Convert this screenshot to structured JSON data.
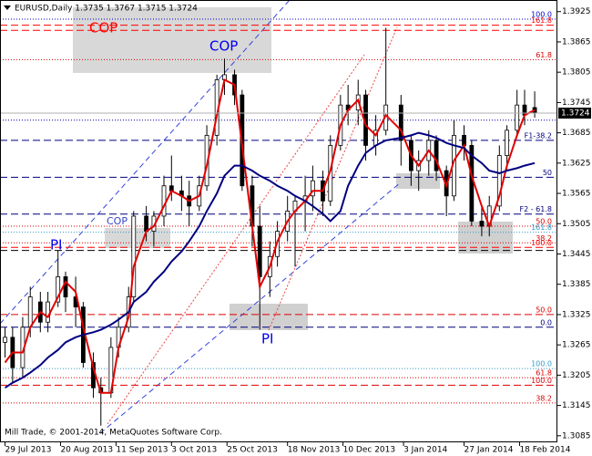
{
  "chart_data": {
    "type": "candlestick",
    "title": "EURUSD,Daily  1.3735 1.3767 1.3715 1.3724",
    "footer": "Mill Trade, © 2001-2014, MetaQuotes Software Corp.",
    "x": [
      "2013-07-29",
      "2013-08-01",
      "2013-08-05",
      "2013-08-08",
      "2013-08-12",
      "2013-08-15",
      "2013-08-19",
      "2013-08-22",
      "2013-08-26",
      "2013-08-29",
      "2013-09-02",
      "2013-09-05",
      "2013-09-09",
      "2013-09-12",
      "2013-09-16",
      "2013-09-18",
      "2013-09-23",
      "2013-09-26",
      "2013-09-30",
      "2013-10-03",
      "2013-10-07",
      "2013-10-10",
      "2013-10-14",
      "2013-10-17",
      "2013-10-21",
      "2013-10-24",
      "2013-10-28",
      "2013-10-31",
      "2013-11-04",
      "2013-11-07",
      "2013-11-11",
      "2013-11-14",
      "2013-11-18",
      "2013-11-21",
      "2013-11-25",
      "2013-11-28",
      "2013-12-02",
      "2013-12-05",
      "2013-12-09",
      "2013-12-12",
      "2013-12-16",
      "2013-12-19",
      "2013-12-23",
      "2013-12-27",
      "2014-01-02",
      "2014-01-06",
      "2014-01-09",
      "2014-01-13",
      "2014-01-16",
      "2014-01-20",
      "2014-01-23",
      "2014-01-27",
      "2014-01-30",
      "2014-02-03",
      "2014-02-06",
      "2014-02-10",
      "2014-02-13",
      "2014-02-17",
      "2014-02-20",
      "2014-02-24"
    ],
    "open": [
      1.327,
      1.328,
      1.322,
      1.33,
      1.335,
      1.331,
      1.335,
      1.34,
      1.336,
      1.334,
      1.323,
      1.318,
      1.317,
      1.326,
      1.33,
      1.336,
      1.352,
      1.349,
      1.352,
      1.358,
      1.357,
      1.356,
      1.354,
      1.358,
      1.368,
      1.379,
      1.38,
      1.376,
      1.358,
      1.35,
      1.34,
      1.344,
      1.349,
      1.353,
      1.355,
      1.356,
      1.359,
      1.355,
      1.366,
      1.374,
      1.373,
      1.376,
      1.366,
      1.369,
      1.374,
      1.367,
      1.361,
      1.363,
      1.367,
      1.361,
      1.356,
      1.368,
      1.366,
      1.351,
      1.35,
      1.354,
      1.364,
      1.369,
      1.374,
      1.3735
    ],
    "high": [
      1.33,
      1.33,
      1.332,
      1.338,
      1.337,
      1.337,
      1.3452,
      1.341,
      1.34,
      1.335,
      1.325,
      1.32,
      1.328,
      1.332,
      1.338,
      1.353,
      1.354,
      1.353,
      1.36,
      1.364,
      1.36,
      1.359,
      1.36,
      1.37,
      1.38,
      1.3832,
      1.381,
      1.377,
      1.36,
      1.354,
      1.347,
      1.351,
      1.356,
      1.356,
      1.36,
      1.362,
      1.361,
      1.368,
      1.376,
      1.378,
      1.379,
      1.377,
      1.372,
      1.3893,
      1.376,
      1.368,
      1.365,
      1.369,
      1.368,
      1.362,
      1.371,
      1.37,
      1.367,
      1.354,
      1.356,
      1.366,
      1.37,
      1.377,
      1.377,
      1.3767
    ],
    "low": [
      1.324,
      1.319,
      1.32,
      1.328,
      1.329,
      1.329,
      1.334,
      1.333,
      1.33,
      1.322,
      1.316,
      1.3105,
      1.316,
      1.324,
      1.329,
      1.335,
      1.347,
      1.346,
      1.35,
      1.355,
      1.353,
      1.35,
      1.353,
      1.357,
      1.366,
      1.376,
      1.374,
      1.357,
      1.346,
      1.3295,
      1.336,
      1.342,
      1.347,
      1.342,
      1.349,
      1.353,
      1.352,
      1.354,
      1.365,
      1.37,
      1.37,
      1.363,
      1.364,
      1.368,
      1.362,
      1.358,
      1.357,
      1.36,
      1.359,
      1.352,
      1.355,
      1.363,
      1.35,
      1.348,
      1.348,
      1.353,
      1.361,
      1.368,
      1.37,
      1.3715
    ],
    "close": [
      1.328,
      1.322,
      1.33,
      1.336,
      1.331,
      1.335,
      1.34,
      1.336,
      1.334,
      1.323,
      1.318,
      1.317,
      1.326,
      1.33,
      1.336,
      1.352,
      1.349,
      1.352,
      1.358,
      1.357,
      1.356,
      1.354,
      1.358,
      1.368,
      1.379,
      1.38,
      1.376,
      1.358,
      1.35,
      1.34,
      1.344,
      1.349,
      1.353,
      1.355,
      1.356,
      1.359,
      1.355,
      1.366,
      1.374,
      1.373,
      1.376,
      1.366,
      1.369,
      1.374,
      1.367,
      1.361,
      1.363,
      1.367,
      1.361,
      1.356,
      1.368,
      1.366,
      1.351,
      1.35,
      1.354,
      1.364,
      1.369,
      1.374,
      1.372,
      1.3724
    ],
    "lines": [
      {
        "color": "#e00000",
        "values": [
          1.323,
          1.325,
          1.325,
          1.33,
          1.333,
          1.332,
          1.336,
          1.339,
          1.337,
          1.33,
          1.322,
          1.317,
          1.317,
          1.326,
          1.332,
          1.342,
          1.349,
          1.35,
          1.354,
          1.357,
          1.356,
          1.355,
          1.356,
          1.362,
          1.372,
          1.379,
          1.378,
          1.366,
          1.35,
          1.338,
          1.342,
          1.347,
          1.351,
          1.353,
          1.355,
          1.357,
          1.357,
          1.361,
          1.37,
          1.373,
          1.375,
          1.37,
          1.368,
          1.372,
          1.369,
          1.364,
          1.362,
          1.365,
          1.363,
          1.358,
          1.363,
          1.366,
          1.36,
          1.354,
          1.35,
          1.356,
          1.362,
          1.368,
          1.372,
          1.373
        ]
      },
      {
        "color": "#000080",
        "values": [
          1.318,
          1.319,
          1.32,
          1.321,
          1.3225,
          1.324,
          1.3255,
          1.327,
          1.328,
          1.3285,
          1.329,
          1.3295,
          1.3305,
          1.3315,
          1.333,
          1.335,
          1.337,
          1.339,
          1.341,
          1.343,
          1.345,
          1.347,
          1.35,
          1.353,
          1.3565,
          1.36,
          1.362,
          1.362,
          1.361,
          1.36,
          1.359,
          1.358,
          1.357,
          1.356,
          1.355,
          1.354,
          1.3525,
          1.351,
          1.353,
          1.358,
          1.362,
          1.3645,
          1.366,
          1.367,
          1.3675,
          1.368,
          1.3685,
          1.368,
          1.3675,
          1.3665,
          1.366,
          1.3655,
          1.364,
          1.3625,
          1.361,
          1.3605,
          1.361,
          1.3615,
          1.362,
          1.3625
        ]
      }
    ],
    "levels": [
      {
        "value": 1.391,
        "color": "#0000cc",
        "style": "dot",
        "label": "100.0"
      },
      {
        "value": 1.3898,
        "color": "#ff0000",
        "style": "dash",
        "label": "161.8"
      },
      {
        "value": 1.3888,
        "color": "#ff0000",
        "style": "dash"
      },
      {
        "value": 1.383,
        "color": "#dd0000",
        "style": "dot",
        "label": "61.8"
      },
      {
        "value": 1.371,
        "color": "#0000aa",
        "style": "dot"
      },
      {
        "value": 1.367,
        "color": "#000080",
        "style": "dash",
        "label": "F1-38.2"
      },
      {
        "value": 1.3597,
        "color": "#000080",
        "style": "dash",
        "label": "50"
      },
      {
        "value": 1.3524,
        "color": "#000080",
        "style": "dash",
        "label": "F2 - 61.8"
      },
      {
        "value": 1.35,
        "color": "#dd0000",
        "style": "dot",
        "label": "50.0"
      },
      {
        "value": 1.3488,
        "color": "#3399cc",
        "style": "dot",
        "label": "161.8"
      },
      {
        "value": 1.3467,
        "color": "#dd0000",
        "style": "dot",
        "label": "38.2"
      },
      {
        "value": 1.3458,
        "color": "#ff0000",
        "style": "dash",
        "label": "100.0"
      },
      {
        "value": 1.3452,
        "color": "#000000",
        "style": "dash"
      },
      {
        "value": 1.3325,
        "color": "#dd0000",
        "style": "dash",
        "label": "50.0"
      },
      {
        "value": 1.33,
        "color": "#000080",
        "style": "dash",
        "label": "0.0"
      },
      {
        "value": 1.3218,
        "color": "#3399cc",
        "style": "dot",
        "label": "100.0"
      },
      {
        "value": 1.32,
        "color": "#dd0000",
        "style": "dot",
        "label": "61.8"
      },
      {
        "value": 1.3185,
        "color": "#dd0000",
        "style": "dash",
        "label": "100.0"
      },
      {
        "value": 1.315,
        "color": "#dd0000",
        "style": "dot",
        "label": "38.2"
      }
    ],
    "annotations": [
      "COP",
      "COP",
      "COP",
      "PI",
      "PI"
    ],
    "xlim": [
      "2013-07-27",
      "2014-03-05"
    ],
    "xticks": [
      {
        "value": "2013-07-29",
        "label": "29 Jul 2013"
      },
      {
        "value": "2013-08-20",
        "label": "20 Aug 2013"
      },
      {
        "value": "2013-09-11",
        "label": "11 Sep 2013"
      },
      {
        "value": "2013-10-03",
        "label": "3 Oct 2013"
      },
      {
        "value": "2013-10-25",
        "label": "25 Oct 2013"
      },
      {
        "value": "2013-11-18",
        "label": "18 Nov 2013"
      },
      {
        "value": "2013-12-10",
        "label": "10 Dec 2013"
      },
      {
        "value": "2014-01-03",
        "label": "3 Jan 2014"
      },
      {
        "value": "2014-01-27",
        "label": "27 Jan 2014"
      },
      {
        "value": "2014-02-18",
        "label": "18 Feb 2014"
      }
    ],
    "ylim": [
      1.3072,
      1.3948
    ],
    "yticks": [
      1.3925,
      1.3865,
      1.3805,
      1.3745,
      1.3685,
      1.3625,
      1.3565,
      1.3505,
      1.3445,
      1.3385,
      1.3325,
      1.3265,
      1.3205,
      1.3145,
      1.3085
    ]
  }
}
